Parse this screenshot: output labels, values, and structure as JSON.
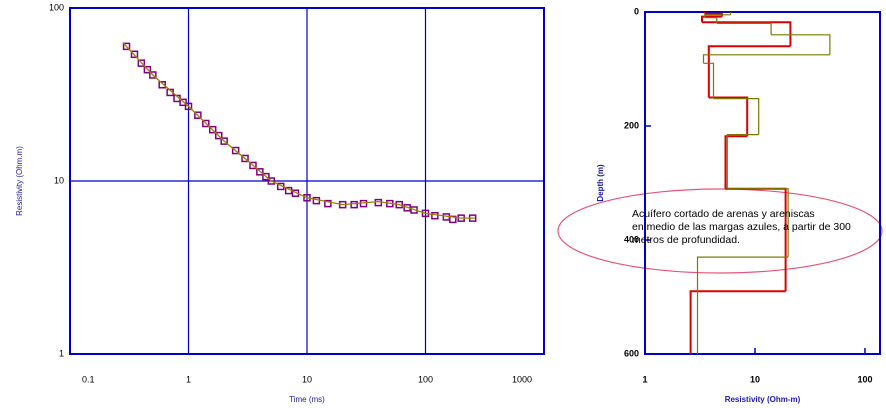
{
  "chart_data": [
    {
      "type": "loglog",
      "xlabel": "Time (ms)",
      "ylabel": "Resistivity (Ohm.m)",
      "xlim": [
        0.1,
        1000
      ],
      "ylim": [
        1,
        100
      ],
      "xticks": [
        0.1,
        1,
        10,
        100,
        1000
      ],
      "yticks": [
        1,
        10,
        100
      ],
      "log_x": true,
      "log_y": true,
      "grid": true,
      "series": [
        {
          "color": "#800080",
          "marker": "square",
          "x": [
            0.3,
            0.35,
            0.4,
            0.45,
            0.5,
            0.6,
            0.7,
            0.8,
            0.9,
            1,
            1.2,
            1.4,
            1.6,
            1.8,
            2,
            2.5,
            3,
            3.5,
            4,
            4.5,
            5,
            6,
            7,
            8,
            10,
            12,
            15,
            20,
            25,
            30,
            40,
            50,
            60,
            70,
            80,
            100,
            120,
            150,
            170,
            200,
            250
          ],
          "values": [
            60,
            54,
            48,
            44,
            41,
            36,
            32.5,
            30,
            28.5,
            27,
            24,
            21.5,
            19.8,
            18.3,
            17,
            15,
            13.5,
            12.3,
            11.3,
            10.6,
            10,
            9.3,
            8.8,
            8.5,
            8,
            7.7,
            7.4,
            7.3,
            7.3,
            7.4,
            7.5,
            7.4,
            7.3,
            7.0,
            6.8,
            6.5,
            6.3,
            6.2,
            6.0,
            6.1,
            6.1
          ]
        },
        {
          "color": "#a08000",
          "x": [
            0.28,
            0.5,
            1,
            2,
            3,
            5,
            10,
            20,
            40,
            60,
            100,
            200,
            260
          ],
          "values": [
            63,
            41,
            27,
            17,
            13.5,
            10,
            8,
            7.3,
            7.6,
            7.3,
            6.5,
            6.1,
            6.1
          ]
        }
      ]
    },
    {
      "type": "step",
      "xlabel": "Resistivity (Ohm-m)",
      "ylabel": "Depth (m)",
      "xlim": [
        1,
        137
      ],
      "ylim": [
        0,
        600
      ],
      "invert_y": true,
      "log_x": true,
      "xticks": [
        1,
        10,
        100
      ],
      "yticks": [
        0,
        200,
        400,
        600
      ],
      "annotation": [
        "Acuífero cortado de arenas y areniscas",
        "en medio de las margas azules, a partir de 300",
        "metros de profundidad."
      ],
      "annotation_color": "#e03060",
      "series": [
        {
          "color": "#dd0000",
          "depth": [
            0,
            3,
            8,
            18,
            60,
            150,
            218,
            310,
            490
          ],
          "values": [
            3.5,
            5,
            3.3,
            21,
            3.8,
            8.5,
            5.4,
            19,
            2.6
          ]
        },
        {
          "color": "#7a7a00",
          "depth": [
            0,
            5,
            10,
            20,
            40,
            75,
            90,
            152,
            215,
            310,
            430
          ],
          "values": [
            6,
            3.5,
            4.5,
            14,
            48,
            3.4,
            4.2,
            10.8,
            5.6,
            20,
            3
          ]
        }
      ]
    }
  ]
}
